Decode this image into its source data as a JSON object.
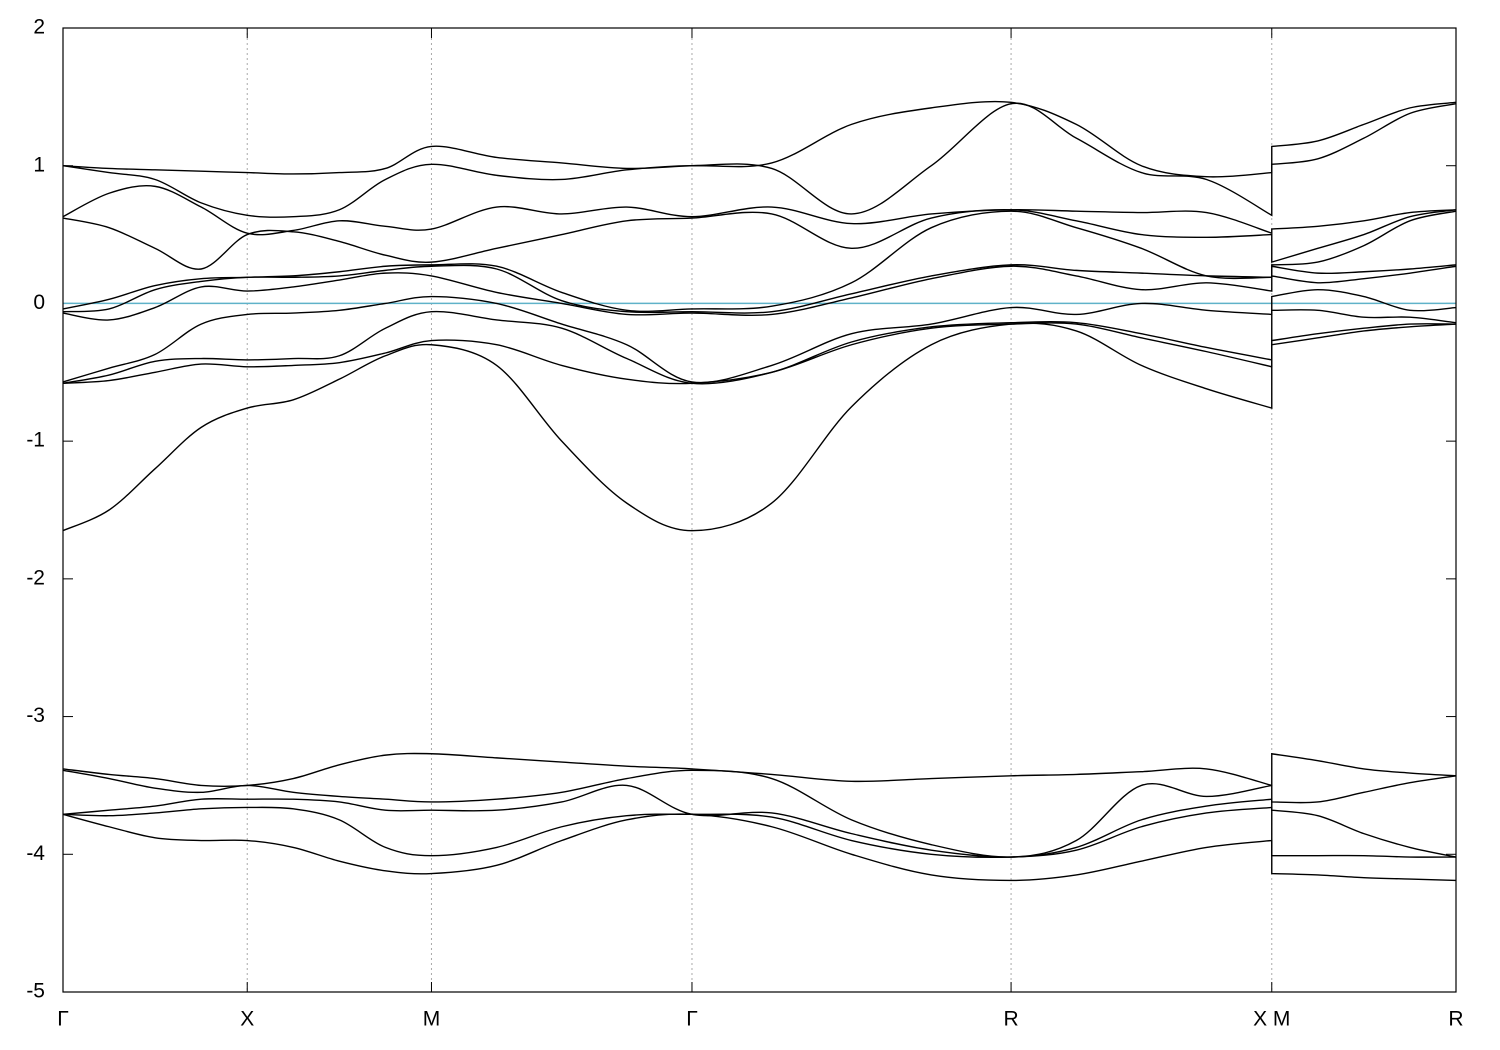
{
  "chart_data": {
    "type": "line",
    "color": "#000000",
    "hline": {
      "value": 0,
      "color": "#5fb2c9"
    },
    "xgrid": true,
    "xlim": [
      0,
      7.561
    ],
    "ylim": [
      -5,
      2
    ],
    "yticks": [
      -5,
      -4,
      -3,
      -2,
      -1,
      0,
      1,
      2
    ],
    "xticks": [
      {
        "value": 0,
        "label": "Γ"
      },
      {
        "value": 1,
        "label": "X"
      },
      {
        "value": 2,
        "label": "M"
      },
      {
        "value": 3.414,
        "label": "Γ"
      },
      {
        "value": 5.146,
        "label": "R"
      },
      {
        "value": 6.561,
        "label": "X M"
      },
      {
        "value": 7.561,
        "label": "R"
      }
    ],
    "x": [
      0,
      0.25,
      0.5,
      0.75,
      1,
      1.25,
      1.5,
      1.75,
      2,
      2.354,
      2.707,
      3.06,
      3.414,
      3.847,
      4.28,
      4.713,
      5.146,
      5.5,
      5.853,
      6.207,
      6.561,
      6.561,
      6.811,
      7.061,
      7.311,
      7.561
    ],
    "series": [
      {
        "values": [
          -1.65,
          -1.5,
          -1.2,
          -0.9,
          -0.76,
          -0.7,
          -0.55,
          -0.38,
          -0.3,
          -0.45,
          -1.0,
          -1.45,
          -1.65,
          -1.45,
          -0.75,
          -0.3,
          -0.15,
          -0.2,
          -0.45,
          -0.62,
          -0.76,
          -0.3,
          -0.25,
          -0.2,
          -0.17,
          -0.15
        ]
      },
      {
        "values": [
          -0.58,
          -0.56,
          -0.5,
          -0.44,
          -0.46,
          -0.45,
          -0.43,
          -0.36,
          -0.27,
          -0.3,
          -0.45,
          -0.55,
          -0.58,
          -0.5,
          -0.3,
          -0.18,
          -0.15,
          -0.15,
          -0.25,
          -0.35,
          -0.46,
          -0.27,
          -0.22,
          -0.18,
          -0.15,
          -0.15
        ]
      },
      {
        "values": [
          -0.58,
          -0.52,
          -0.42,
          -0.4,
          -0.41,
          -0.4,
          -0.38,
          -0.18,
          -0.06,
          -0.12,
          -0.18,
          -0.4,
          -0.58,
          -0.5,
          -0.28,
          -0.17,
          -0.14,
          -0.14,
          -0.22,
          -0.32,
          -0.41,
          -0.05,
          -0.05,
          -0.1,
          -0.1,
          -0.14
        ]
      },
      {
        "values": [
          -0.57,
          -0.47,
          -0.37,
          -0.15,
          -0.08,
          -0.07,
          -0.05,
          0.0,
          0.05,
          0.0,
          -0.15,
          -0.3,
          -0.57,
          -0.45,
          -0.22,
          -0.15,
          -0.03,
          -0.08,
          0.0,
          -0.05,
          -0.08,
          0.05,
          0.1,
          0.05,
          -0.05,
          -0.03
        ]
      },
      {
        "values": [
          -0.07,
          -0.12,
          -0.03,
          0.12,
          0.09,
          0.12,
          0.17,
          0.22,
          0.2,
          0.08,
          0.0,
          -0.08,
          -0.07,
          -0.08,
          0.04,
          0.18,
          0.27,
          0.2,
          0.1,
          0.15,
          0.09,
          0.2,
          0.15,
          0.18,
          0.22,
          0.27
        ]
      },
      {
        "values": [
          -0.06,
          -0.04,
          0.1,
          0.16,
          0.19,
          0.19,
          0.2,
          0.24,
          0.27,
          0.25,
          0.02,
          -0.06,
          -0.06,
          -0.06,
          0.07,
          0.2,
          0.28,
          0.24,
          0.22,
          0.2,
          0.19,
          0.27,
          0.22,
          0.23,
          0.25,
          0.28
        ]
      },
      {
        "values": [
          -0.04,
          0.03,
          0.13,
          0.18,
          0.19,
          0.2,
          0.23,
          0.27,
          0.28,
          0.27,
          0.08,
          -0.05,
          -0.04,
          -0.02,
          0.15,
          0.55,
          0.67,
          0.55,
          0.4,
          0.2,
          0.19,
          0.28,
          0.3,
          0.42,
          0.6,
          0.67
        ]
      },
      {
        "values": [
          0.62,
          0.55,
          0.4,
          0.25,
          0.5,
          0.52,
          0.45,
          0.35,
          0.3,
          0.4,
          0.5,
          0.6,
          0.62,
          0.65,
          0.4,
          0.62,
          0.68,
          0.6,
          0.5,
          0.48,
          0.5,
          0.3,
          0.4,
          0.5,
          0.63,
          0.68
        ]
      },
      {
        "values": [
          0.63,
          0.8,
          0.85,
          0.7,
          0.51,
          0.53,
          0.6,
          0.56,
          0.54,
          0.7,
          0.65,
          0.7,
          0.63,
          0.7,
          0.58,
          0.65,
          0.68,
          0.67,
          0.66,
          0.66,
          0.51,
          0.54,
          0.56,
          0.6,
          0.66,
          0.68
        ]
      },
      {
        "values": [
          1.0,
          0.95,
          0.9,
          0.73,
          0.64,
          0.63,
          0.68,
          0.9,
          1.01,
          0.93,
          0.9,
          0.97,
          1.0,
          0.98,
          0.65,
          1.0,
          1.45,
          1.2,
          0.95,
          0.9,
          0.64,
          1.01,
          1.05,
          1.2,
          1.38,
          1.45
        ]
      },
      {
        "values": [
          1.0,
          0.98,
          0.97,
          0.96,
          0.95,
          0.94,
          0.95,
          0.98,
          1.14,
          1.06,
          1.02,
          0.98,
          1.0,
          1.02,
          1.3,
          1.42,
          1.46,
          1.3,
          1.0,
          0.92,
          0.95,
          1.14,
          1.18,
          1.3,
          1.42,
          1.46
        ]
      },
      {
        "values": [
          -3.71,
          -3.8,
          -3.88,
          -3.9,
          -3.9,
          -3.95,
          -4.05,
          -4.12,
          -4.14,
          -4.08,
          -3.9,
          -3.75,
          -3.71,
          -3.8,
          -4.0,
          -4.15,
          -4.19,
          -4.15,
          -4.05,
          -3.95,
          -3.9,
          -4.14,
          -4.15,
          -4.17,
          -4.18,
          -4.19
        ]
      },
      {
        "values": [
          -3.71,
          -3.72,
          -3.7,
          -3.67,
          -3.66,
          -3.67,
          -3.75,
          -3.95,
          -4.01,
          -3.95,
          -3.8,
          -3.72,
          -3.71,
          -3.73,
          -3.9,
          -4.0,
          -4.02,
          -3.97,
          -3.8,
          -3.7,
          -3.66,
          -4.01,
          -4.01,
          -4.01,
          -4.02,
          -4.02
        ]
      },
      {
        "values": [
          -3.71,
          -3.68,
          -3.65,
          -3.6,
          -3.6,
          -3.6,
          -3.62,
          -3.68,
          -3.68,
          -3.68,
          -3.62,
          -3.5,
          -3.71,
          -3.7,
          -3.85,
          -3.97,
          -4.02,
          -3.95,
          -3.75,
          -3.65,
          -3.6,
          -3.68,
          -3.72,
          -3.85,
          -3.95,
          -4.02
        ]
      },
      {
        "values": [
          -3.39,
          -3.45,
          -3.52,
          -3.55,
          -3.5,
          -3.55,
          -3.58,
          -3.6,
          -3.62,
          -3.6,
          -3.55,
          -3.45,
          -3.39,
          -3.45,
          -3.75,
          -3.93,
          -4.02,
          -3.9,
          -3.5,
          -3.58,
          -3.5,
          -3.62,
          -3.62,
          -3.55,
          -3.48,
          -3.43
        ]
      },
      {
        "values": [
          -3.38,
          -3.42,
          -3.45,
          -3.5,
          -3.5,
          -3.45,
          -3.35,
          -3.28,
          -3.27,
          -3.3,
          -3.33,
          -3.36,
          -3.38,
          -3.42,
          -3.47,
          -3.45,
          -3.43,
          -3.42,
          -3.4,
          -3.38,
          -3.5,
          -3.27,
          -3.32,
          -3.38,
          -3.41,
          -3.43
        ]
      }
    ]
  }
}
